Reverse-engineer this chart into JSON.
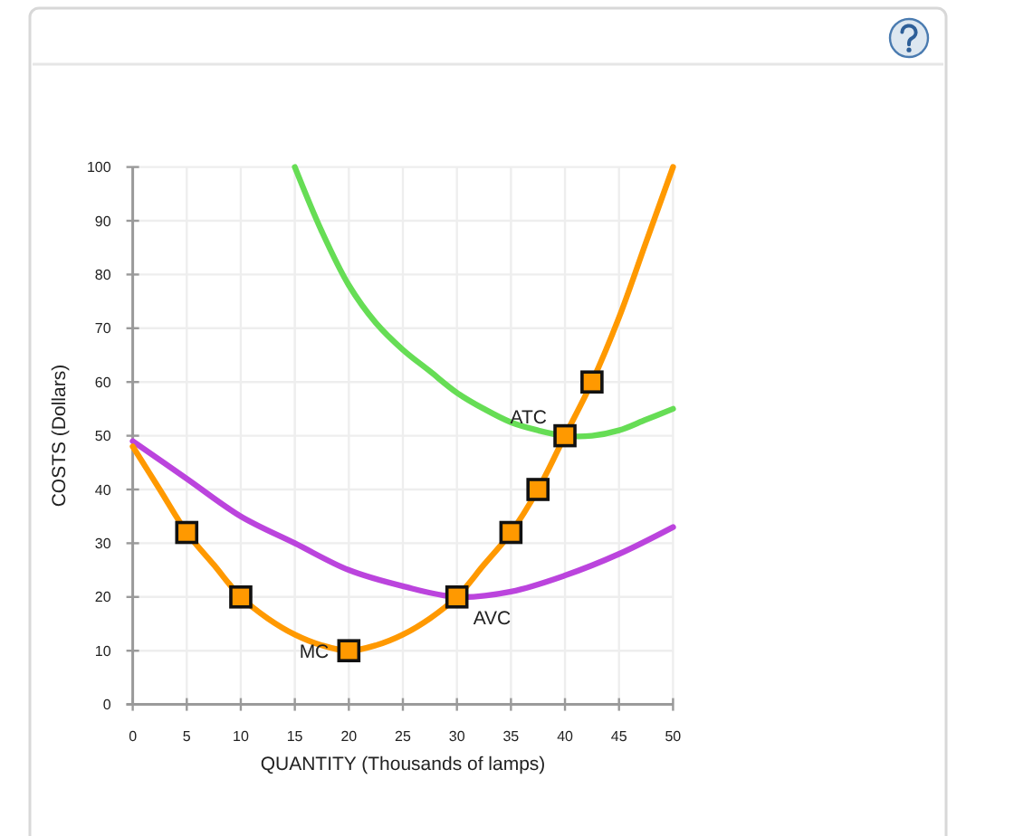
{
  "chart_data": {
    "type": "line",
    "xlabel": "QUANTITY (Thousands of lamps)",
    "ylabel": "COSTS (Dollars)",
    "xlim": [
      0,
      50
    ],
    "ylim": [
      0,
      100
    ],
    "xticks": [
      0,
      5,
      10,
      15,
      20,
      25,
      30,
      35,
      40,
      45,
      50
    ],
    "yticks": [
      0,
      10,
      20,
      30,
      40,
      50,
      60,
      70,
      80,
      90,
      100
    ],
    "grid": true,
    "series": [
      {
        "name": "ATC",
        "color": "#66dd55",
        "marker": "none",
        "x": [
          15,
          17.5,
          20,
          22.5,
          25,
          27.5,
          30,
          32.5,
          35,
          37.5,
          40,
          42.5,
          45,
          47.5,
          50
        ],
        "values": [
          100,
          88,
          78,
          71,
          66,
          62,
          58,
          55,
          52.5,
          51,
          50,
          50,
          51,
          53,
          55
        ]
      },
      {
        "name": "AVC",
        "color": "#bb44dd",
        "marker": "none",
        "x": [
          0,
          5,
          10,
          15,
          20,
          25,
          30,
          35,
          40,
          45,
          50
        ],
        "values": [
          49,
          42,
          35,
          30,
          25,
          22,
          20,
          21,
          24,
          28,
          33
        ]
      },
      {
        "name": "MC",
        "color": "#ff9900",
        "marker": "none",
        "x": [
          0,
          2.5,
          5,
          7.5,
          10,
          12.5,
          15,
          17.5,
          20,
          22.5,
          25,
          27.5,
          30,
          32.5,
          35,
          37.5,
          40,
          42.5,
          45,
          47.5,
          50
        ],
        "values": [
          48,
          40,
          32,
          26,
          20,
          16,
          13,
          11,
          10,
          11,
          13,
          16,
          20,
          26,
          32,
          40,
          50,
          60,
          72,
          86,
          100
        ]
      },
      {
        "type": "scatter",
        "color": "#ff9900",
        "marker": "square",
        "x": [
          5,
          10,
          20,
          30,
          35,
          37.5,
          40,
          42.5
        ],
        "values": [
          32,
          20,
          10,
          20,
          32,
          40,
          50,
          60
        ]
      }
    ]
  }
}
